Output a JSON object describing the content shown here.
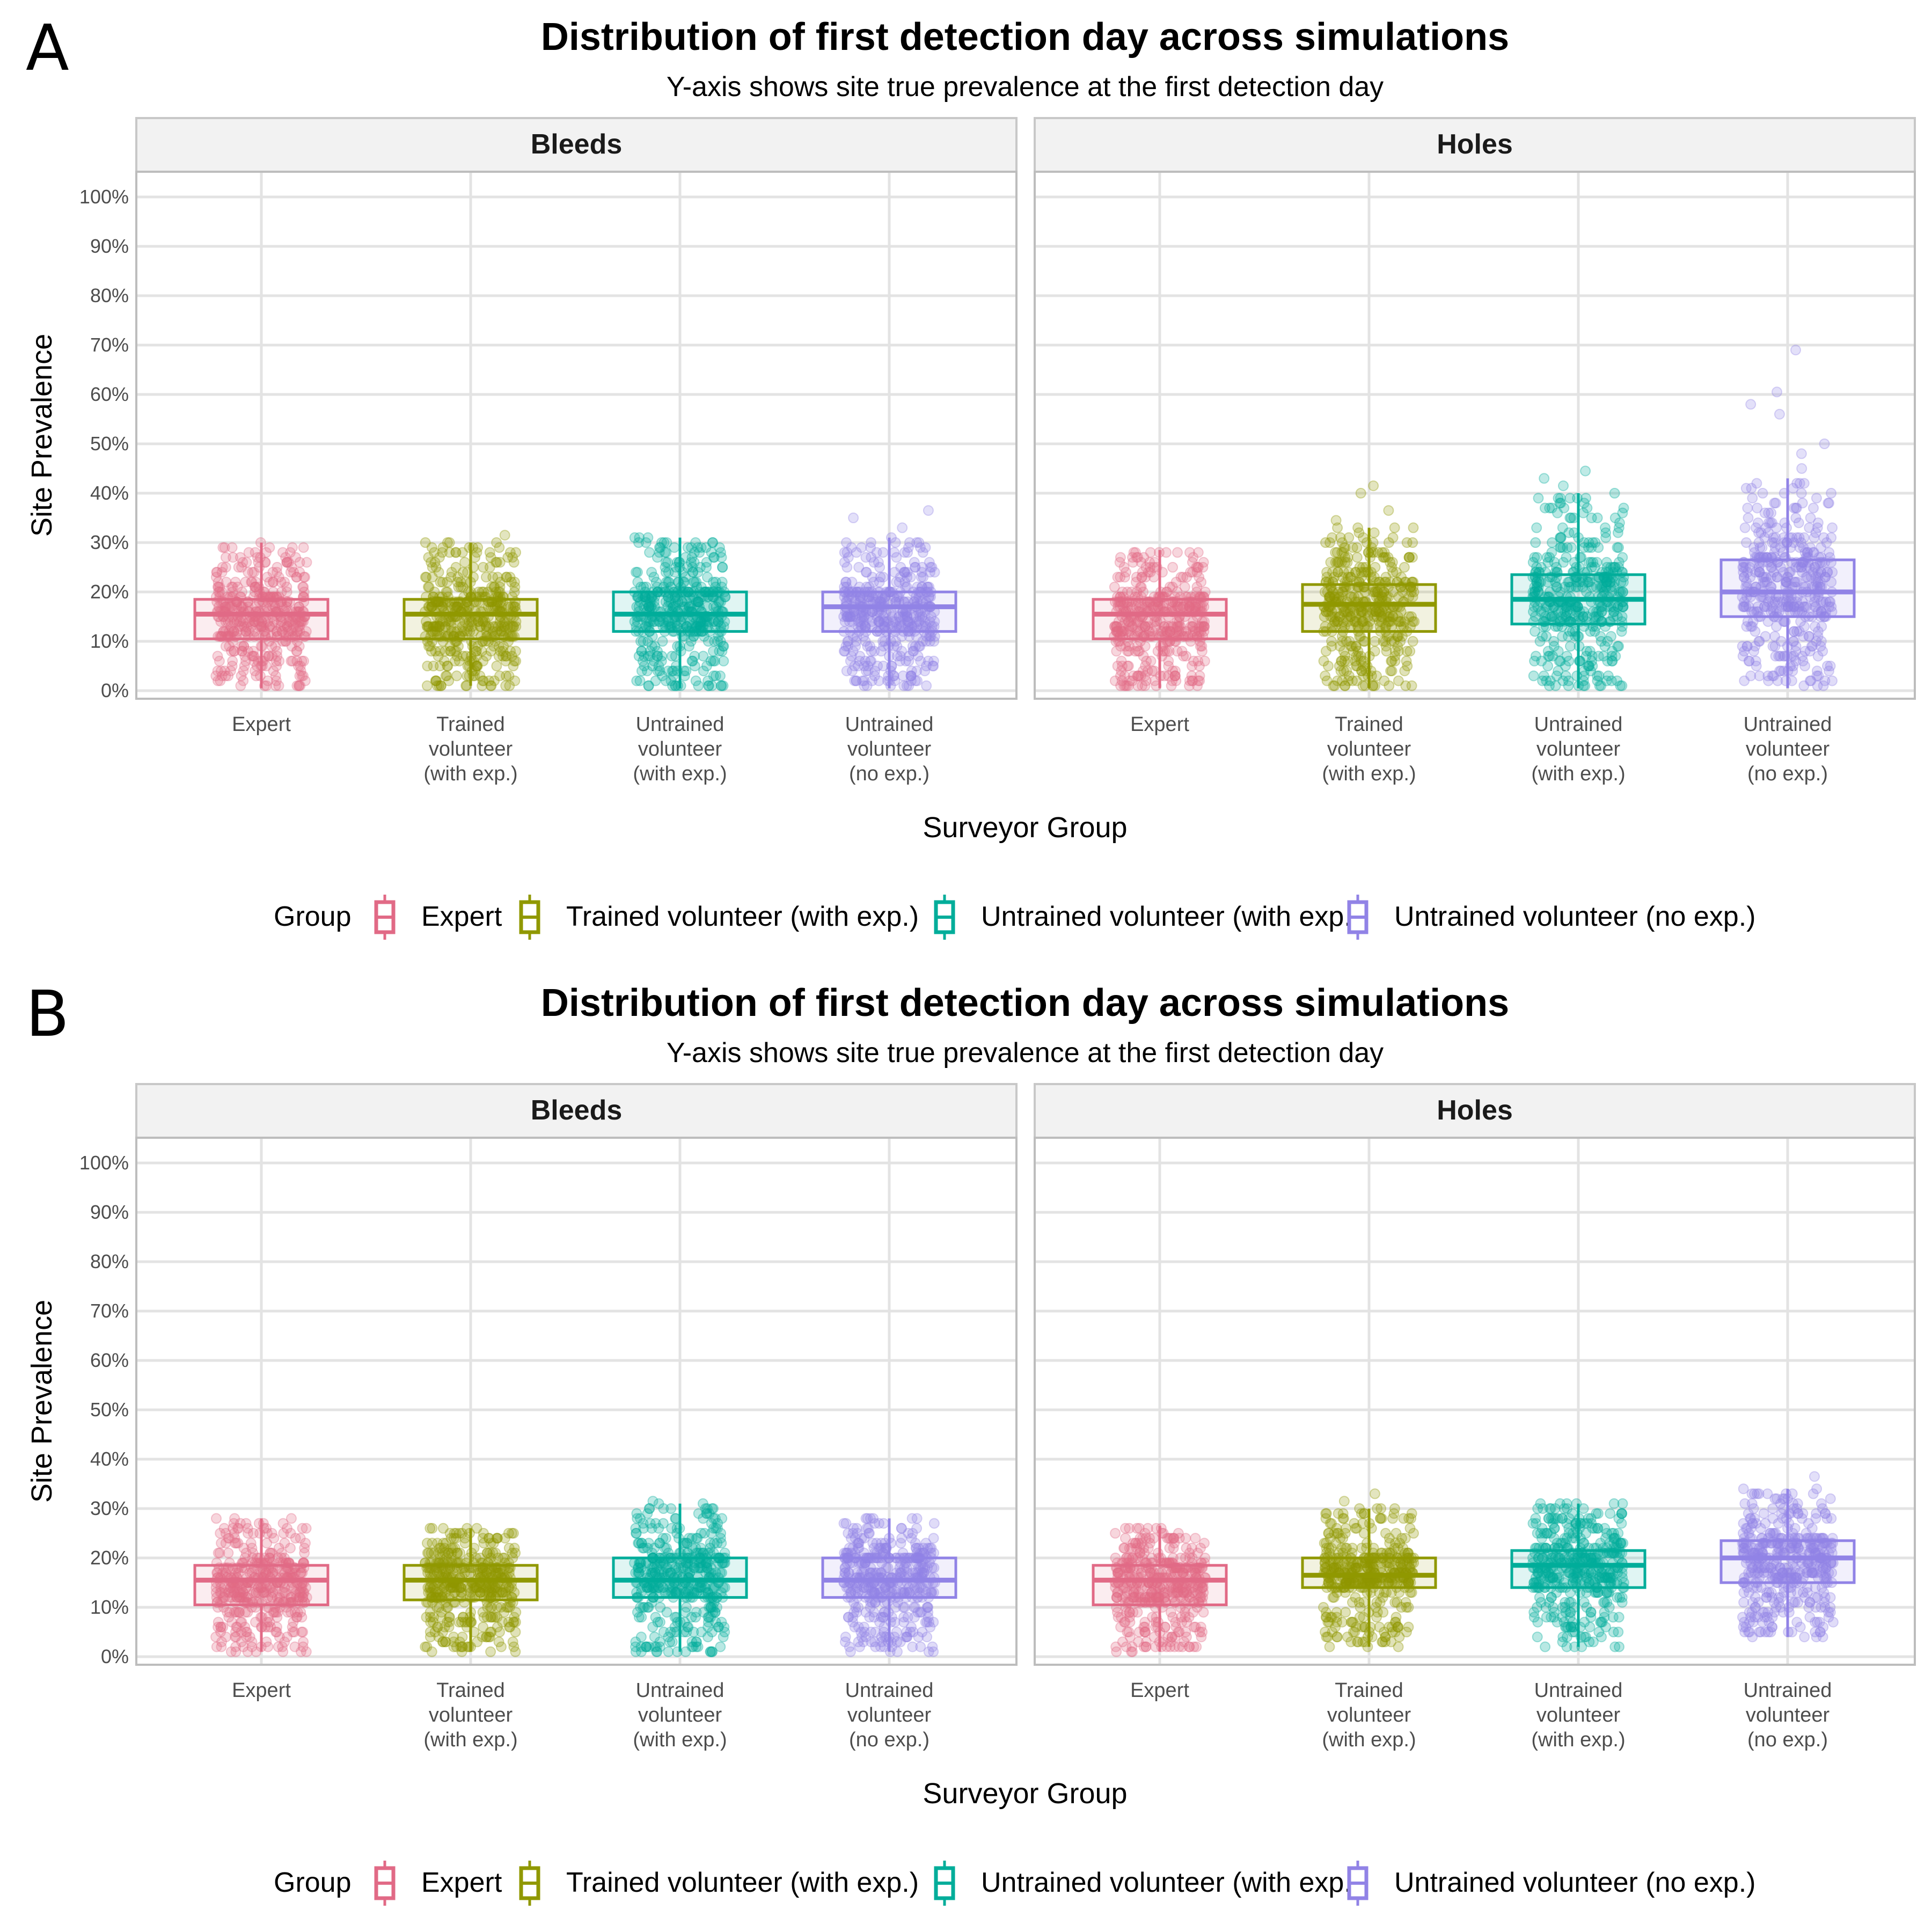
{
  "figures": [
    {
      "letter": "A",
      "title": "Distribution of first detection day across simulations",
      "subtitle": "Y-axis shows site true prevalence at the first detection day"
    },
    {
      "letter": "B",
      "title": "Distribution of first detection day across simulations",
      "subtitle": "Y-axis shows site true prevalence at the first detection day"
    }
  ],
  "colors": {
    "Expert": "#E16A86",
    "Trained volunteer (with exp.)": "#909800",
    "Untrained volunteer (with exp.)": "#00AD9A",
    "Untrained volunteer (no exp.)": "#9183E6"
  },
  "legend": {
    "title": "Group",
    "items": [
      "Expert",
      "Trained volunteer (with exp.)",
      "Untrained volunteer (with exp.)",
      "Untrained volunteer (no exp.)"
    ]
  },
  "chart_data": [
    {
      "type": "box",
      "figure": "A",
      "title": "Distribution of first detection day across simulations",
      "subtitle": "Y-axis shows site true prevalence at the first detection day",
      "xlabel": "Surveyor Group",
      "ylabel": "Site Prevalence",
      "ylim": [
        0,
        100
      ],
      "yticks": [
        "0%",
        "10%",
        "20%",
        "30%",
        "40%",
        "50%",
        "60%",
        "70%",
        "80%",
        "90%",
        "100%"
      ],
      "categories": [
        "Expert",
        "Trained\nvolunteer\n(with exp.)",
        "Untrained\nvolunteer\n(with exp.)",
        "Untrained\nvolunteer\n(no exp.)"
      ],
      "grid": true,
      "legend_position": "bottom",
      "facets": [
        {
          "name": "Bleeds",
          "boxes": [
            {
              "group": "Expert",
              "min": 0.5,
              "q1": 10.5,
              "median": 15.5,
              "q3": 18.5,
              "max": 30,
              "outliers": []
            },
            {
              "group": "Trained volunteer (with exp.)",
              "min": 1,
              "q1": 10.5,
              "median": 15.5,
              "q3": 18.5,
              "max": 30,
              "outliers": [
                31.5
              ]
            },
            {
              "group": "Untrained volunteer (with exp.)",
              "min": 0.5,
              "q1": 12,
              "median": 15.5,
              "q3": 20,
              "max": 31,
              "outliers": []
            },
            {
              "group": "Untrained volunteer (no exp.)",
              "min": 0.5,
              "q1": 12,
              "median": 17,
              "q3": 20,
              "max": 31,
              "outliers": [
                33,
                35,
                36.5
              ]
            }
          ]
        },
        {
          "name": "Holes",
          "boxes": [
            {
              "group": "Expert",
              "min": 0.5,
              "q1": 10.5,
              "median": 15.5,
              "q3": 18.5,
              "max": 28.5,
              "outliers": []
            },
            {
              "group": "Trained volunteer (with exp.)",
              "min": 0.5,
              "q1": 12,
              "median": 17.5,
              "q3": 21.5,
              "max": 33,
              "outliers": [
                34.5,
                36.5,
                40,
                41.5
              ]
            },
            {
              "group": "Untrained volunteer (with exp.)",
              "min": 0.5,
              "q1": 13.5,
              "median": 18.5,
              "q3": 23.5,
              "max": 40,
              "outliers": [
                41.5,
                43,
                44.5
              ]
            },
            {
              "group": "Untrained volunteer (no exp.)",
              "min": 0.5,
              "q1": 15,
              "median": 20,
              "q3": 26.5,
              "max": 43,
              "outliers": [
                45,
                48,
                50,
                56,
                58,
                60.5,
                69
              ]
            }
          ]
        }
      ]
    },
    {
      "type": "box",
      "figure": "B",
      "title": "Distribution of first detection day across simulations",
      "subtitle": "Y-axis shows site true prevalence at the first detection day",
      "xlabel": "Surveyor Group",
      "ylabel": "Site Prevalence",
      "ylim": [
        0,
        100
      ],
      "yticks": [
        "0%",
        "10%",
        "20%",
        "30%",
        "40%",
        "50%",
        "60%",
        "70%",
        "80%",
        "90%",
        "100%"
      ],
      "categories": [
        "Expert",
        "Trained\nvolunteer\n(with exp.)",
        "Untrained\nvolunteer\n(with exp.)",
        "Untrained\nvolunteer\n(no exp.)"
      ],
      "grid": true,
      "legend_position": "bottom",
      "facets": [
        {
          "name": "Bleeds",
          "boxes": [
            {
              "group": "Expert",
              "min": 1,
              "q1": 10.5,
              "median": 15.5,
              "q3": 18.5,
              "max": 28,
              "outliers": []
            },
            {
              "group": "Trained volunteer (with exp.)",
              "min": 1,
              "q1": 11.5,
              "median": 15.5,
              "q3": 18.5,
              "max": 26,
              "outliers": []
            },
            {
              "group": "Untrained volunteer (with exp.)",
              "min": 1,
              "q1": 12,
              "median": 15.5,
              "q3": 20,
              "max": 31,
              "outliers": [
                31.5
              ]
            },
            {
              "group": "Untrained volunteer (no exp.)",
              "min": 1,
              "q1": 12,
              "median": 15.5,
              "q3": 20,
              "max": 28,
              "outliers": []
            }
          ]
        },
        {
          "name": "Holes",
          "boxes": [
            {
              "group": "Expert",
              "min": 1,
              "q1": 10.5,
              "median": 15.5,
              "q3": 18.5,
              "max": 26.5,
              "outliers": []
            },
            {
              "group": "Trained volunteer (with exp.)",
              "min": 2,
              "q1": 14,
              "median": 16.5,
              "q3": 20,
              "max": 30,
              "outliers": [
                31.5,
                33
              ]
            },
            {
              "group": "Untrained volunteer (with exp.)",
              "min": 2,
              "q1": 14,
              "median": 18.5,
              "q3": 21.5,
              "max": 31,
              "outliers": []
            },
            {
              "group": "Untrained volunteer (no exp.)",
              "min": 4,
              "q1": 15,
              "median": 20,
              "q3": 23.5,
              "max": 34,
              "outliers": [
                36.5
              ]
            }
          ]
        }
      ]
    }
  ]
}
